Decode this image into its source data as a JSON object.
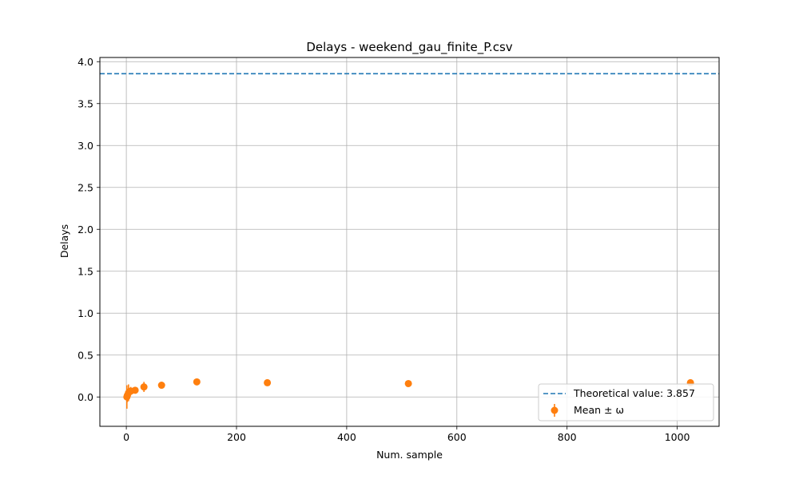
{
  "chart_data": {
    "type": "scatter",
    "title": "Delays - weekend_gau_finite_P.csv",
    "xlabel": "Num. sample",
    "ylabel": "Delays",
    "xlim": [
      -48,
      1076
    ],
    "ylim": [
      -0.35,
      4.05
    ],
    "xticks": [
      0,
      200,
      400,
      600,
      800,
      1000
    ],
    "xtick_labels": [
      "0",
      "200",
      "400",
      "600",
      "800",
      "1000"
    ],
    "yticks": [
      0.0,
      0.5,
      1.0,
      1.5,
      2.0,
      2.5,
      3.0,
      3.5,
      4.0
    ],
    "ytick_labels": [
      "0.0",
      "0.5",
      "1.0",
      "1.5",
      "2.0",
      "2.5",
      "3.0",
      "3.5",
      "4.0"
    ],
    "grid": true,
    "legend_position": "lower-right",
    "theoretical_value": 3.857,
    "series": [
      {
        "name": "Theoretical value: 3.857",
        "kind": "hline",
        "value": 3.857,
        "color": "#1f77b4",
        "style": "dashed"
      },
      {
        "name": "Mean ± ω",
        "kind": "errorbar",
        "color": "#ff7f0e",
        "x": [
          1,
          2,
          4,
          8,
          16,
          32,
          64,
          128,
          256,
          512,
          1024
        ],
        "y": [
          0.0,
          0.02,
          0.05,
          0.07,
          0.08,
          0.12,
          0.14,
          0.18,
          0.17,
          0.16,
          0.17
        ],
        "err": [
          0.14,
          0.08,
          0.1,
          0.05,
          0.03,
          0.06,
          0.04,
          0.04,
          0.02,
          0.02,
          0.02
        ]
      }
    ]
  },
  "legend": {
    "line_label": "Theoretical value: 3.857",
    "points_label": "Mean ± ω"
  }
}
